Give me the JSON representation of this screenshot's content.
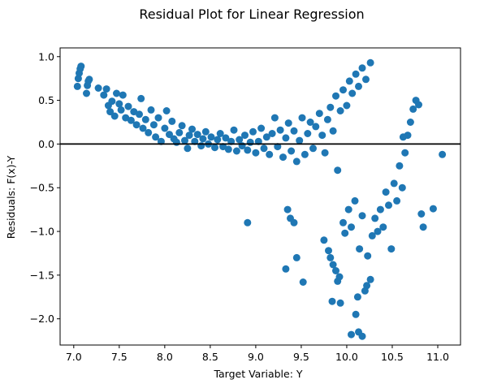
{
  "chart_data": {
    "type": "scatter",
    "title": "Residual Plot for Linear Regression",
    "xlabel": "Target Variable: Y",
    "ylabel": "Residuals: F(x)-Y",
    "xlim": [
      6.85,
      11.25
    ],
    "ylim": [
      -2.3,
      1.1
    ],
    "xticks": [
      7.0,
      7.5,
      8.0,
      8.5,
      9.0,
      9.5,
      10.0,
      10.5,
      11.0
    ],
    "xtick_labels": [
      "7.0",
      "7.5",
      "8.0",
      "8.5",
      "9.0",
      "9.5",
      "10.0",
      "10.5",
      "11.0"
    ],
    "yticks": [
      1.0,
      0.5,
      0.0,
      -0.5,
      -1.0,
      -1.5,
      -2.0
    ],
    "ytick_labels": [
      "1.0",
      "0.5",
      "0.0",
      "−0.5",
      "−1.0",
      "−1.5",
      "−2.0"
    ],
    "reference_line_y": 0.0,
    "grid": false,
    "colors": {
      "points": "#1f77b4",
      "reference_line": "#000000"
    },
    "series": [
      {
        "points": [
          [
            7.04,
            0.66
          ],
          [
            7.05,
            0.75
          ],
          [
            7.06,
            0.81
          ],
          [
            7.07,
            0.86
          ],
          [
            7.08,
            0.89
          ],
          [
            7.14,
            0.58
          ],
          [
            7.15,
            0.67
          ],
          [
            7.16,
            0.72
          ],
          [
            7.17,
            0.74
          ],
          [
            7.27,
            0.64
          ],
          [
            7.33,
            0.56
          ],
          [
            7.36,
            0.63
          ],
          [
            7.38,
            0.44
          ],
          [
            7.4,
            0.37
          ],
          [
            7.42,
            0.49
          ],
          [
            7.45,
            0.32
          ],
          [
            7.47,
            0.58
          ],
          [
            7.5,
            0.46
          ],
          [
            7.52,
            0.39
          ],
          [
            7.54,
            0.56
          ],
          [
            7.57,
            0.3
          ],
          [
            7.6,
            0.43
          ],
          [
            7.63,
            0.27
          ],
          [
            7.66,
            0.37
          ],
          [
            7.69,
            0.22
          ],
          [
            7.72,
            0.34
          ],
          [
            7.74,
            0.52
          ],
          [
            7.76,
            0.18
          ],
          [
            7.79,
            0.28
          ],
          [
            7.82,
            0.13
          ],
          [
            7.85,
            0.39
          ],
          [
            7.88,
            0.22
          ],
          [
            7.9,
            0.08
          ],
          [
            7.93,
            0.3
          ],
          [
            7.96,
            0.03
          ],
          [
            8.0,
            0.18
          ],
          [
            8.02,
            0.38
          ],
          [
            8.05,
            0.11
          ],
          [
            8.08,
            0.26
          ],
          [
            8.1,
            0.06
          ],
          [
            8.13,
            0.02
          ],
          [
            8.16,
            0.13
          ],
          [
            8.19,
            0.21
          ],
          [
            8.22,
            0.04
          ],
          [
            8.25,
            -0.05
          ],
          [
            8.27,
            0.1
          ],
          [
            8.3,
            0.17
          ],
          [
            8.33,
            0.03
          ],
          [
            8.36,
            0.11
          ],
          [
            8.4,
            -0.02
          ],
          [
            8.42,
            0.06
          ],
          [
            8.45,
            0.14
          ],
          [
            8.48,
            0.0
          ],
          [
            8.51,
            0.08
          ],
          [
            8.55,
            -0.04
          ],
          [
            8.58,
            0.05
          ],
          [
            8.61,
            0.12
          ],
          [
            8.64,
            -0.03
          ],
          [
            8.67,
            0.07
          ],
          [
            8.7,
            -0.06
          ],
          [
            8.73,
            0.03
          ],
          [
            8.76,
            0.16
          ],
          [
            8.79,
            -0.08
          ],
          [
            8.82,
            0.05
          ],
          [
            8.85,
            -0.02
          ],
          [
            8.88,
            0.1
          ],
          [
            8.91,
            -0.07
          ],
          [
            8.94,
            0.02
          ],
          [
            8.97,
            0.14
          ],
          [
            9.0,
            -0.1
          ],
          [
            9.03,
            0.03
          ],
          [
            9.06,
            0.18
          ],
          [
            9.09,
            -0.05
          ],
          [
            9.12,
            0.08
          ],
          [
            9.15,
            -0.12
          ],
          [
            9.18,
            0.12
          ],
          [
            9.21,
            0.3
          ],
          [
            9.24,
            -0.03
          ],
          [
            9.27,
            0.16
          ],
          [
            9.3,
            -0.15
          ],
          [
            9.33,
            0.07
          ],
          [
            9.36,
            0.24
          ],
          [
            9.39,
            -0.08
          ],
          [
            9.42,
            0.15
          ],
          [
            9.45,
            -0.2
          ],
          [
            9.48,
            0.04
          ],
          [
            9.51,
            0.3
          ],
          [
            9.54,
            -0.12
          ],
          [
            9.57,
            0.12
          ],
          [
            9.6,
            0.25
          ],
          [
            9.63,
            -0.05
          ],
          [
            9.66,
            0.2
          ],
          [
            9.7,
            0.35
          ],
          [
            9.73,
            0.1
          ],
          [
            9.76,
            -0.1
          ],
          [
            9.79,
            0.28
          ],
          [
            9.82,
            0.42
          ],
          [
            9.85,
            0.15
          ],
          [
            9.88,
            0.55
          ],
          [
            9.9,
            -0.3
          ],
          [
            9.93,
            0.38
          ],
          [
            9.96,
            0.62
          ],
          [
            10.0,
            0.44
          ],
          [
            10.03,
            0.72
          ],
          [
            10.06,
            0.58
          ],
          [
            10.1,
            0.8
          ],
          [
            10.13,
            0.66
          ],
          [
            10.17,
            0.87
          ],
          [
            10.21,
            0.74
          ],
          [
            10.26,
            0.93
          ],
          [
            8.91,
            -0.9
          ],
          [
            9.35,
            -0.75
          ],
          [
            9.38,
            -0.85
          ],
          [
            9.42,
            -0.9
          ],
          [
            9.33,
            -1.43
          ],
          [
            9.45,
            -1.3
          ],
          [
            9.52,
            -1.58
          ],
          [
            9.75,
            -1.1
          ],
          [
            9.8,
            -1.22
          ],
          [
            9.82,
            -1.3
          ],
          [
            9.85,
            -1.38
          ],
          [
            9.88,
            -1.45
          ],
          [
            9.9,
            -1.57
          ],
          [
            9.92,
            -1.52
          ],
          [
            9.96,
            -0.9
          ],
          [
            9.98,
            -1.02
          ],
          [
            10.02,
            -0.75
          ],
          [
            10.05,
            -0.95
          ],
          [
            10.09,
            -0.65
          ],
          [
            10.12,
            -1.75
          ],
          [
            10.14,
            -1.2
          ],
          [
            10.17,
            -0.82
          ],
          [
            10.2,
            -1.68
          ],
          [
            10.23,
            -1.28
          ],
          [
            10.26,
            -1.55
          ],
          [
            10.05,
            -2.18
          ],
          [
            10.1,
            -1.95
          ],
          [
            10.13,
            -2.15
          ],
          [
            10.17,
            -2.2
          ],
          [
            10.22,
            -1.62
          ],
          [
            9.84,
            -1.8
          ],
          [
            9.93,
            -1.82
          ],
          [
            10.28,
            -1.05
          ],
          [
            10.31,
            -0.85
          ],
          [
            10.34,
            -1.0
          ],
          [
            10.37,
            -0.75
          ],
          [
            10.4,
            -0.95
          ],
          [
            10.43,
            -0.55
          ],
          [
            10.46,
            -0.7
          ],
          [
            10.49,
            -1.2
          ],
          [
            10.52,
            -0.45
          ],
          [
            10.55,
            -0.65
          ],
          [
            10.58,
            -0.25
          ],
          [
            10.61,
            -0.5
          ],
          [
            10.64,
            -0.1
          ],
          [
            10.67,
            0.1
          ],
          [
            10.7,
            0.25
          ],
          [
            10.73,
            0.4
          ],
          [
            10.76,
            0.5
          ],
          [
            10.79,
            0.45
          ],
          [
            10.82,
            -0.8
          ],
          [
            10.84,
            -0.95
          ],
          [
            10.95,
            -0.74
          ],
          [
            11.05,
            -0.12
          ],
          [
            10.62,
            0.08
          ]
        ]
      }
    ]
  }
}
